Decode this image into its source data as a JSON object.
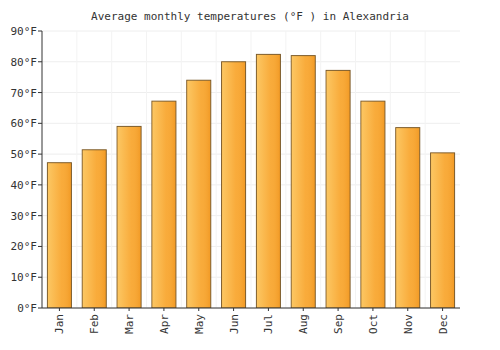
{
  "chart_data": {
    "type": "bar",
    "title": "Average monthly temperatures (°F ) in Alexandria",
    "categories": [
      "Jan",
      "Feb",
      "Mar",
      "Apr",
      "May",
      "Jun",
      "Jul",
      "Aug",
      "Sep",
      "Oct",
      "Nov",
      "Dec"
    ],
    "values": [
      47.2,
      51.4,
      59,
      67.2,
      74,
      80,
      82.4,
      82,
      77.2,
      67.2,
      58.6,
      50.4
    ],
    "color": "#f8a532",
    "ylim": [
      0,
      90
    ],
    "yticks": [
      {
        "value": 0,
        "label": "0°F"
      },
      {
        "value": 10,
        "label": "10°F"
      },
      {
        "value": 20,
        "label": "20°F"
      },
      {
        "value": 30,
        "label": "30°F"
      },
      {
        "value": 40,
        "label": "40°F"
      },
      {
        "value": 50,
        "label": "50°F"
      },
      {
        "value": 60,
        "label": "60°F"
      },
      {
        "value": 70,
        "label": "70°F"
      },
      {
        "value": 80,
        "label": "80°F"
      },
      {
        "value": 90,
        "label": "90°F"
      }
    ],
    "grid": true
  }
}
